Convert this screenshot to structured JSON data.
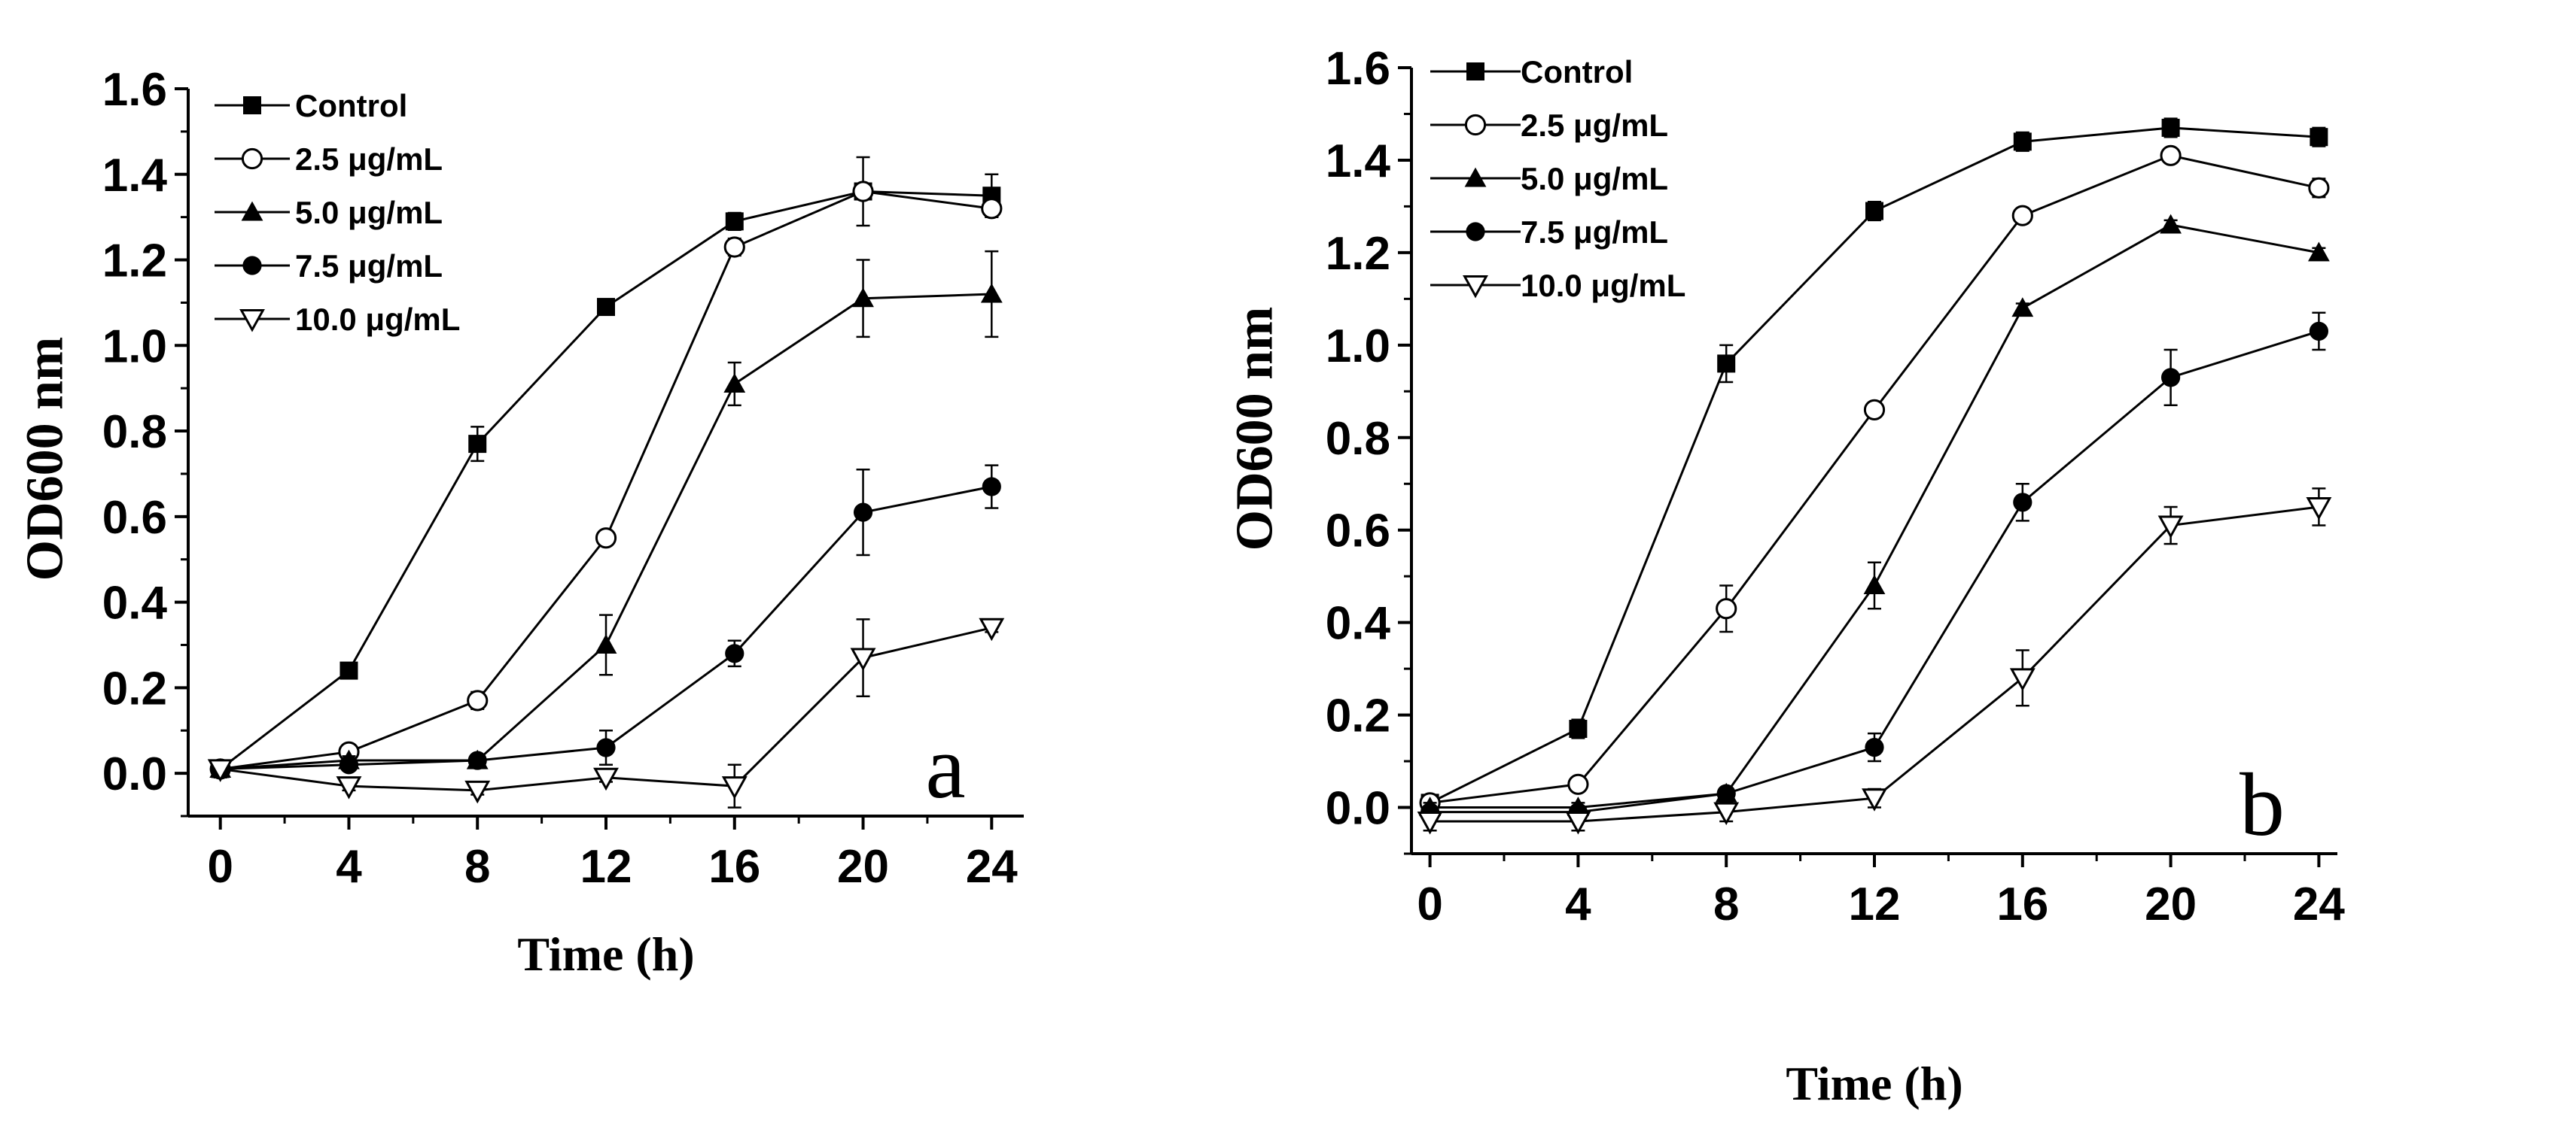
{
  "chart_data": [
    {
      "type": "line",
      "panel_label": "a",
      "xlabel": "Time (h)",
      "ylabel": "OD600 nm",
      "xlim": [
        -1,
        25
      ],
      "ylim": [
        -0.1,
        1.6
      ],
      "xticks": [
        "0",
        "4",
        "8",
        "12",
        "16",
        "20",
        "24"
      ],
      "yticks": [
        "0.0",
        "0.2",
        "0.4",
        "0.6",
        "0.8",
        "1.0",
        "1.2",
        "1.4",
        "1.6"
      ],
      "x": [
        0,
        4,
        8,
        12,
        16,
        20,
        24
      ],
      "legend_position": "top-left",
      "series": [
        {
          "name": "Control",
          "marker": "square",
          "values": [
            0.01,
            0.24,
            0.77,
            1.09,
            1.29,
            1.36,
            1.35
          ],
          "errors": [
            0.02,
            0.01,
            0.04,
            0.01,
            0.02,
            0.01,
            0.05
          ]
        },
        {
          "name": "2.5 μg/mL",
          "marker": "circle-open",
          "values": [
            0.01,
            0.05,
            0.17,
            0.55,
            1.23,
            1.36,
            1.32
          ],
          "errors": [
            0.01,
            0.01,
            0.02,
            0.01,
            0.02,
            0.08,
            0.02
          ]
        },
        {
          "name": "5.0 μg/mL",
          "marker": "triangle-up",
          "values": [
            0.01,
            0.03,
            0.03,
            0.3,
            0.91,
            1.11,
            1.12
          ],
          "errors": [
            0.01,
            0.01,
            0.01,
            0.07,
            0.05,
            0.09,
            0.1
          ]
        },
        {
          "name": "7.5 μg/mL",
          "marker": "circle",
          "values": [
            0.01,
            0.02,
            0.03,
            0.06,
            0.28,
            0.61,
            0.67
          ],
          "errors": [
            0.01,
            0.01,
            0.01,
            0.04,
            0.03,
            0.1,
            0.05
          ]
        },
        {
          "name": "10.0 μg/mL",
          "marker": "triangle-down-open",
          "values": [
            0.01,
            -0.03,
            -0.04,
            -0.01,
            -0.03,
            0.27,
            0.34
          ],
          "errors": [
            0.01,
            0.01,
            0.01,
            0.01,
            0.05,
            0.09,
            0.01
          ]
        }
      ]
    },
    {
      "type": "line",
      "panel_label": "b",
      "xlabel": "Time (h)",
      "ylabel": "OD600 nm",
      "xlim": [
        -0.5,
        24.5
      ],
      "ylim": [
        -0.1,
        1.6
      ],
      "xticks": [
        "0",
        "4",
        "8",
        "12",
        "16",
        "20",
        "24"
      ],
      "yticks": [
        "0.0",
        "0.2",
        "0.4",
        "0.6",
        "0.8",
        "1.0",
        "1.2",
        "1.4",
        "1.6"
      ],
      "x": [
        0,
        4,
        8,
        12,
        16,
        20,
        24
      ],
      "legend_position": "top-left",
      "series": [
        {
          "name": "Control",
          "marker": "square",
          "values": [
            0.01,
            0.17,
            0.96,
            1.29,
            1.44,
            1.47,
            1.45
          ],
          "errors": [
            0.01,
            0.02,
            0.04,
            0.02,
            0.02,
            0.02,
            0.02
          ]
        },
        {
          "name": "2.5 μg/mL",
          "marker": "circle-open",
          "values": [
            0.01,
            0.05,
            0.43,
            0.86,
            1.28,
            1.41,
            1.34
          ],
          "errors": [
            0.01,
            0.01,
            0.05,
            0.01,
            0.01,
            0.01,
            0.02
          ]
        },
        {
          "name": "5.0 μg/mL",
          "marker": "triangle-up",
          "values": [
            0.0,
            0.0,
            0.03,
            0.48,
            1.08,
            1.26,
            1.2
          ],
          "errors": [
            0.01,
            0.01,
            0.01,
            0.05,
            0.01,
            0.01,
            0.01
          ]
        },
        {
          "name": "7.5 μg/mL",
          "marker": "circle",
          "values": [
            -0.01,
            -0.01,
            0.03,
            0.13,
            0.66,
            0.93,
            1.03
          ],
          "errors": [
            0.01,
            0.01,
            0.01,
            0.03,
            0.04,
            0.06,
            0.04
          ]
        },
        {
          "name": "10.0 μg/mL",
          "marker": "triangle-down-open",
          "values": [
            -0.03,
            -0.03,
            -0.01,
            0.02,
            0.28,
            0.61,
            0.65
          ],
          "errors": [
            0.02,
            0.02,
            0.02,
            0.02,
            0.06,
            0.04,
            0.04
          ]
        }
      ]
    }
  ]
}
